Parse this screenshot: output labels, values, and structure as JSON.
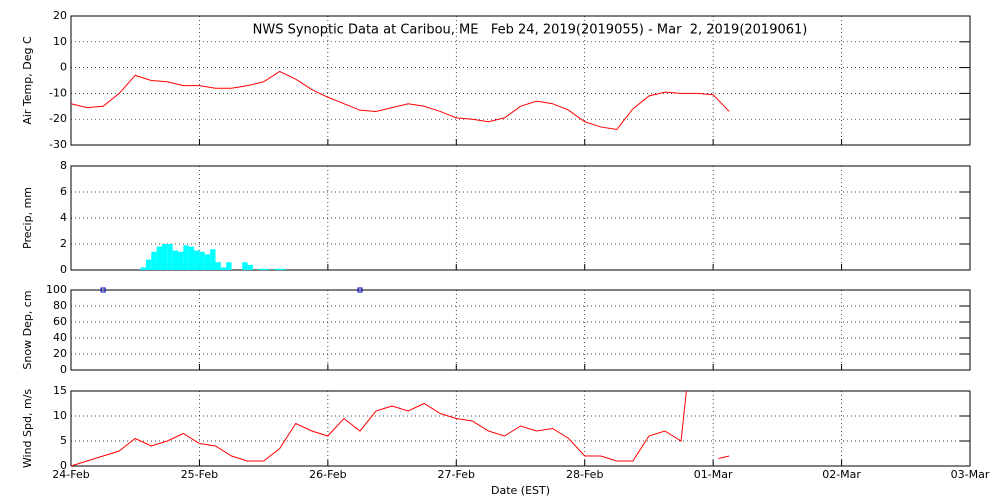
{
  "chart_data": [
    {
      "type": "line",
      "title": "NWS Synoptic Data at Caribou, ME   Feb 24, 2019(2019055) - Mar  2, 2019(2019061)",
      "ylabel": "Air Temp, Deg C",
      "xlim": [
        0,
        168
      ],
      "ylim": [
        -30,
        20
      ],
      "yticks": [
        -30,
        -20,
        -10,
        0,
        10,
        20
      ],
      "grid": true,
      "series": [
        {
          "name": "Air Temp",
          "color": "#ff0000",
          "x": [
            0,
            3,
            6,
            9,
            12,
            15,
            18,
            21,
            24,
            27,
            30,
            33,
            36,
            39,
            42,
            45,
            48,
            51,
            54,
            57,
            60,
            63,
            66,
            69,
            72,
            75,
            78,
            81,
            84,
            87,
            90,
            93,
            96,
            99,
            102,
            105,
            108,
            111,
            114,
            117,
            120,
            123
          ],
          "values": [
            -14,
            -15.5,
            -15,
            -10,
            -3,
            -5,
            -5.5,
            -7,
            -7,
            -8,
            -8,
            -7,
            -5.5,
            -1.5,
            -4.5,
            -8.5,
            -11.5,
            -14,
            -16.5,
            -17,
            -15.5,
            -14,
            -15,
            -17,
            -19.5,
            -20,
            -21,
            -19.5,
            -15,
            -13,
            -14,
            -16.5,
            -21,
            -23,
            -24,
            -16,
            -11,
            -9.5,
            -10,
            -10,
            -10.5,
            -17
          ]
        }
      ]
    },
    {
      "type": "bar",
      "ylabel": "Precip, mm",
      "xlim": [
        0,
        168
      ],
      "ylim": [
        0,
        8
      ],
      "yticks": [
        0,
        2,
        4,
        6,
        8
      ],
      "grid": true,
      "series": [
        {
          "name": "Precip",
          "color": "#00ffff",
          "x": [
            13,
            14,
            15,
            16,
            17,
            18,
            19,
            20,
            21,
            22,
            23,
            24,
            25,
            26,
            27,
            28,
            29,
            30,
            31,
            32,
            33,
            34,
            35,
            36,
            37,
            38,
            39
          ],
          "values": [
            0.2,
            0.8,
            1.4,
            1.8,
            2.0,
            2.0,
            1.5,
            1.4,
            1.9,
            1.8,
            1.5,
            1.4,
            1.2,
            1.6,
            0.6,
            0.2,
            0.6,
            0,
            0,
            0.6,
            0.4,
            0,
            0.1,
            0.1,
            0,
            0.1,
            0.1
          ]
        }
      ]
    },
    {
      "type": "scatter",
      "ylabel": "Snow Dep, cm",
      "xlim": [
        0,
        168
      ],
      "ylim": [
        0,
        100
      ],
      "yticks": [
        0,
        20,
        40,
        60,
        80,
        100
      ],
      "grid": true,
      "series": [
        {
          "name": "Snow Depth",
          "color": "#0000cc",
          "x": [
            6,
            54
          ],
          "values": [
            100,
            100
          ]
        }
      ]
    },
    {
      "type": "line",
      "ylabel": "Wind Spd, m/s",
      "xlabel": "Date (EST)",
      "xlim": [
        0,
        168
      ],
      "ylim": [
        0,
        15
      ],
      "yticks": [
        0,
        5,
        10,
        15
      ],
      "grid": true,
      "xticks": [
        {
          "value": 0,
          "label": "24-Feb"
        },
        {
          "value": 24,
          "label": "25-Feb"
        },
        {
          "value": 48,
          "label": "26-Feb"
        },
        {
          "value": 72,
          "label": "27-Feb"
        },
        {
          "value": 96,
          "label": "28-Feb"
        },
        {
          "value": 120,
          "label": "01-Mar"
        },
        {
          "value": 144,
          "label": "02-Mar"
        },
        {
          "value": 168,
          "label": "03-Mar"
        }
      ],
      "series": [
        {
          "name": "Wind Speed",
          "color": "#ff0000",
          "x": [
            0,
            3,
            6,
            9,
            12,
            15,
            18,
            21,
            24,
            27,
            30,
            33,
            36,
            39,
            42,
            45,
            48,
            51,
            54,
            57,
            60,
            63,
            66,
            69,
            72,
            75,
            78,
            81,
            84,
            87,
            90,
            93,
            96,
            99,
            102,
            105,
            108,
            111,
            114,
            115,
            118,
            121,
            123
          ],
          "values": [
            0,
            1,
            2,
            3,
            5.5,
            4,
            5,
            6.5,
            4.5,
            4,
            2,
            1,
            1,
            3.5,
            8.5,
            7,
            6,
            9.5,
            7,
            11,
            12,
            11,
            12.5,
            10.5,
            9.5,
            9,
            7,
            6,
            8,
            7,
            7.5,
            5.5,
            2,
            2,
            1,
            1,
            6,
            7,
            5,
            15,
            null,
            1.5,
            2
          ]
        }
      ]
    }
  ]
}
